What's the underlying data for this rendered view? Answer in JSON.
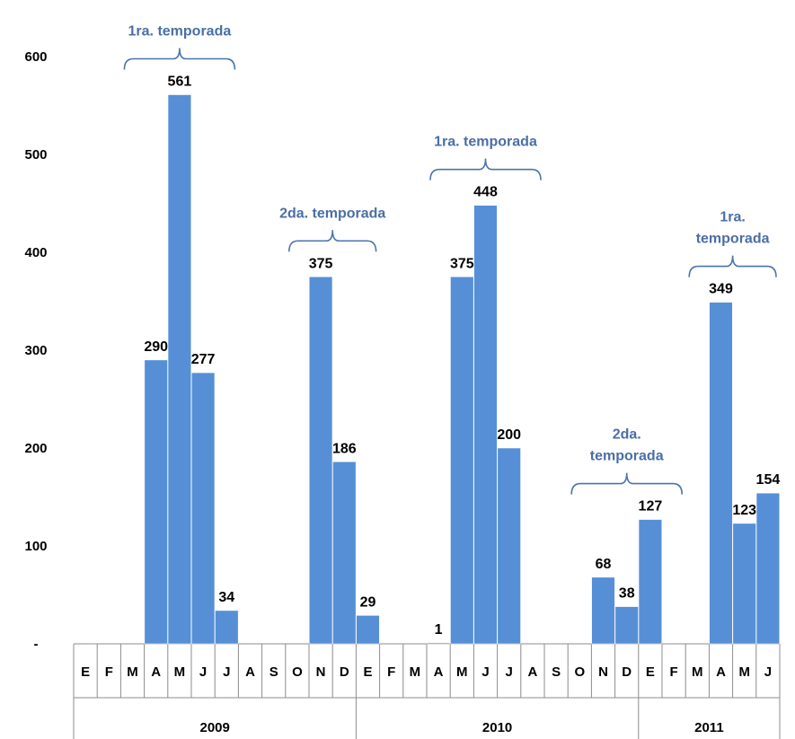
{
  "chart_data": {
    "type": "bar",
    "y_ticks": [
      "600",
      "500",
      "400",
      "300",
      "200",
      "100",
      "-"
    ],
    "ylim": [
      0,
      600
    ],
    "months": [
      "E",
      "F",
      "M",
      "A",
      "M",
      "J",
      "J",
      "A",
      "S",
      "O",
      "N",
      "D",
      "E",
      "F",
      "M",
      "A",
      "M",
      "J",
      "J",
      "A",
      "S",
      "O",
      "N",
      "D",
      "E",
      "F",
      "M",
      "A",
      "M",
      "J"
    ],
    "values": [
      null,
      null,
      null,
      290,
      561,
      277,
      34,
      null,
      null,
      null,
      375,
      186,
      29,
      null,
      null,
      1,
      375,
      448,
      200,
      null,
      null,
      null,
      68,
      38,
      127,
      null,
      null,
      349,
      123,
      154
    ],
    "value_labels": [
      "",
      "",
      "",
      "290",
      "561",
      "277",
      "34",
      "",
      "",
      "",
      "375",
      "186",
      "29",
      "",
      "",
      "1",
      "375",
      "448",
      "200",
      "",
      "",
      "",
      "68",
      "38",
      "127",
      "",
      "",
      "349",
      "123",
      "154"
    ],
    "years": [
      {
        "label": "2009",
        "span": [
          0,
          12
        ]
      },
      {
        "label": "2010",
        "span": [
          12,
          24
        ]
      },
      {
        "label": "2011",
        "span": [
          24,
          30
        ]
      }
    ],
    "annotations": [
      {
        "lines": [
          "1ra. temporada"
        ],
        "covers": [
          2,
          7
        ]
      },
      {
        "lines": [
          "2da. temporada"
        ],
        "covers": [
          9,
          13
        ]
      },
      {
        "lines": [
          "1ra. temporada"
        ],
        "covers": [
          15,
          20
        ]
      },
      {
        "lines": [
          "2da.",
          "temporada"
        ],
        "covers": [
          21,
          26
        ]
      },
      {
        "lines": [
          "1ra.",
          "temporada"
        ],
        "covers": [
          26,
          30
        ]
      }
    ],
    "colors": {
      "bar": "#568fd6",
      "annotation": "#4a6fa5"
    }
  }
}
